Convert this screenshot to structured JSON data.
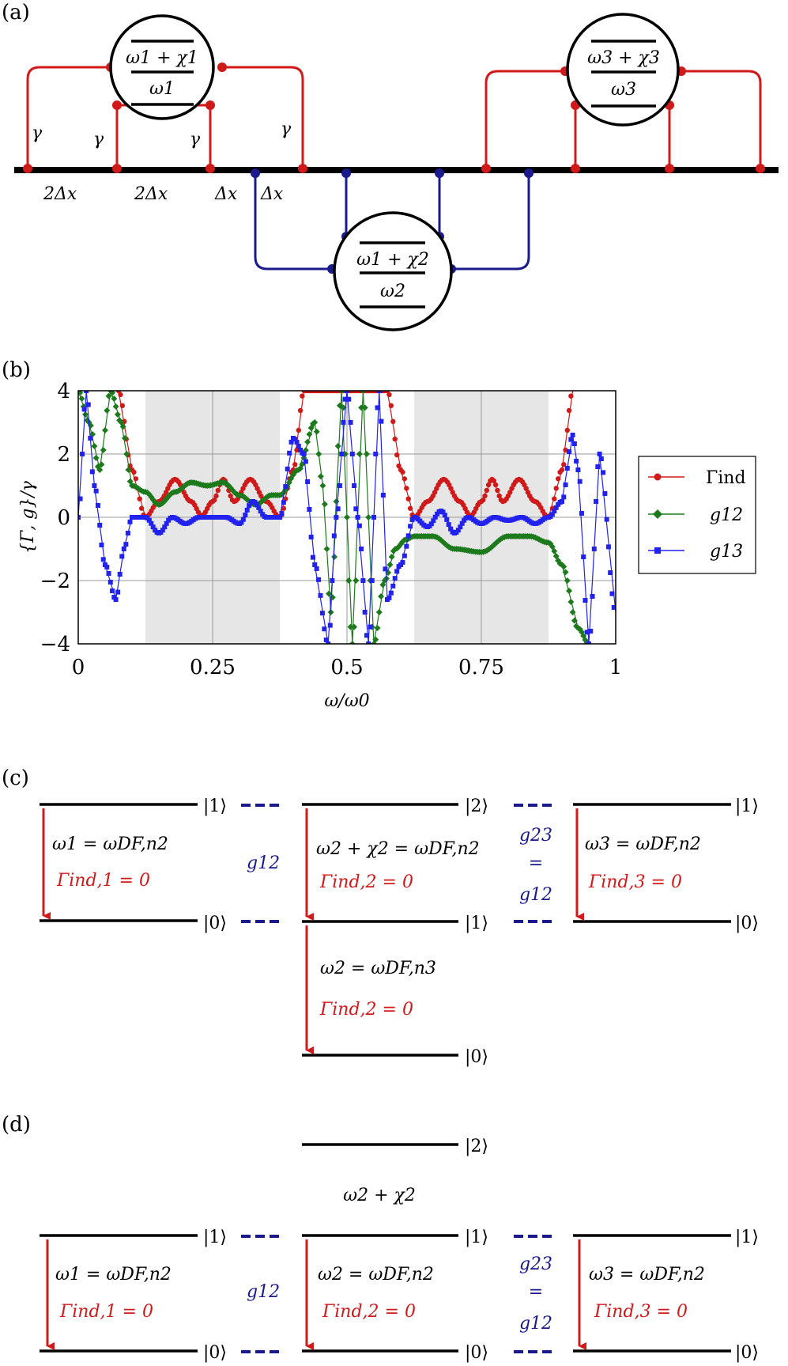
{
  "colors": {
    "red": "#d01a1a",
    "blue": "#1a1a8c",
    "green": "#1c7a1c",
    "plot_blue": "#2222ee",
    "shade": "#e6e6e6"
  },
  "panel_a": {
    "label": "(a)",
    "atom1": {
      "top": "ω1 + χ1",
      "bottom": "ω1"
    },
    "atom2": {
      "top": "ω1 + χ2",
      "bottom": "ω2"
    },
    "atom3": {
      "top": "ω3 + χ3",
      "bottom": "ω3"
    },
    "gamma": "γ",
    "spacings": [
      "2Δx",
      "2Δx",
      "Δx",
      "Δx"
    ]
  },
  "panel_b": {
    "label": "(b)"
  },
  "chart_data": {
    "type": "line",
    "title": "",
    "xlabel": "ω/ω0",
    "ylabel": "{Γ, g}/γ",
    "xlim": [
      0,
      1
    ],
    "ylim": [
      -4,
      4
    ],
    "x_ticks": [
      "0",
      "0.25",
      "0.5",
      "0.75",
      "1"
    ],
    "y_ticks": [
      "4",
      "2",
      "0",
      "−2",
      "−4"
    ],
    "grid": true,
    "shaded_regions": [
      [
        0.125,
        0.375
      ],
      [
        0.625,
        0.875
      ]
    ],
    "legend_position": "right",
    "series": [
      {
        "name": "Γind",
        "marker": "circle",
        "x": [
          0.075,
          0.1,
          0.125,
          0.15,
          0.18,
          0.21,
          0.23,
          0.25,
          0.27,
          0.29,
          0.32,
          0.35,
          0.375,
          0.4,
          0.42,
          0.575,
          0.6,
          0.625,
          0.65,
          0.68,
          0.71,
          0.73,
          0.75,
          0.77,
          0.79,
          0.82,
          0.85,
          0.875,
          0.9,
          0.92
        ],
        "values": [
          4.0,
          1.5,
          0.0,
          0.5,
          1.2,
          0.5,
          0.05,
          0.5,
          1.2,
          0.5,
          1.2,
          0.5,
          0.0,
          1.5,
          4.0,
          4.0,
          1.5,
          0.0,
          0.5,
          1.2,
          0.5,
          0.05,
          0.5,
          1.2,
          0.5,
          1.2,
          0.5,
          0.0,
          1.5,
          4.0
        ]
      },
      {
        "name": "g12",
        "marker": "diamond",
        "x": [
          0.0,
          0.02,
          0.04,
          0.06,
          0.08,
          0.1,
          0.125,
          0.15,
          0.18,
          0.21,
          0.24,
          0.27,
          0.3,
          0.33,
          0.36,
          0.375,
          0.41,
          0.44,
          0.455,
          0.47,
          0.49,
          0.51,
          0.53,
          0.55,
          0.57,
          0.59,
          0.61,
          0.625,
          0.66,
          0.7,
          0.75,
          0.8,
          0.84,
          0.875,
          0.9,
          0.93,
          0.95
        ],
        "values": [
          4.0,
          3.0,
          1.5,
          4.0,
          3.0,
          1.0,
          0.8,
          0.4,
          0.8,
          1.1,
          1.0,
          1.1,
          0.7,
          0.4,
          0.7,
          0.7,
          1.5,
          3.0,
          1.0,
          -3.0,
          4.0,
          -4.0,
          4.0,
          -4.0,
          -2.0,
          -1.0,
          -0.7,
          -0.6,
          -0.6,
          -1.0,
          -1.1,
          -0.6,
          -0.6,
          -0.8,
          -1.5,
          -3.5,
          -4.0
        ]
      },
      {
        "name": "g13",
        "marker": "square",
        "x": [
          0.0,
          0.015,
          0.03,
          0.05,
          0.07,
          0.085,
          0.1,
          0.125,
          0.15,
          0.175,
          0.2,
          0.225,
          0.25,
          0.275,
          0.3,
          0.325,
          0.35,
          0.375,
          0.4,
          0.42,
          0.44,
          0.465,
          0.48,
          0.5,
          0.52,
          0.54,
          0.56,
          0.575,
          0.6,
          0.625,
          0.65,
          0.675,
          0.7,
          0.725,
          0.75,
          0.775,
          0.8,
          0.825,
          0.85,
          0.875,
          0.9,
          0.92,
          0.93,
          0.95,
          0.97,
          1.0
        ],
        "values": [
          0.0,
          4.0,
          1.0,
          -1.5,
          -2.6,
          -1.0,
          0.0,
          0.0,
          -0.5,
          0.0,
          -0.2,
          0.0,
          0.0,
          0.0,
          -0.2,
          0.5,
          0.0,
          0.0,
          2.5,
          2.0,
          -1.5,
          -4.0,
          0.0,
          4.0,
          0.0,
          -4.0,
          4.0,
          -2.6,
          -1.5,
          0.0,
          -0.3,
          0.2,
          -0.5,
          0.0,
          -0.2,
          0.0,
          -0.1,
          0.0,
          -0.2,
          0.0,
          0.5,
          2.6,
          1.5,
          -4.0,
          2.0,
          -3.0
        ]
      }
    ]
  },
  "panel_c": {
    "label": "(c)",
    "kets": {
      "k0": "|0⟩",
      "k1": "|1⟩",
      "k2": "|2⟩"
    },
    "col1": {
      "freq": "ω1 = ωDF,n2",
      "gamma": "Γind,1 = 0"
    },
    "col2": {
      "freq": "ω2 + χ2 = ωDF,n2",
      "gamma": "Γind,2 = 0",
      "freq_low": "ω2 = ωDF,n3",
      "gamma_low": "Γind,2 = 0"
    },
    "col3": {
      "freq": "ω3 = ωDF,n2",
      "gamma": "Γind,3 = 0"
    },
    "g12": "g12",
    "g23": "g23",
    "equals": "=",
    "g12b": "g12"
  },
  "panel_d": {
    "label": "(d)",
    "top_label": "ω2 + χ2",
    "col1": {
      "freq": "ω1 = ωDF,n2",
      "gamma": "Γind,1 = 0"
    },
    "col2": {
      "freq": "ω2 = ωDF,n2",
      "gamma": "Γind,2 = 0"
    },
    "col3": {
      "freq": "ω3 = ωDF,n2",
      "gamma": "Γind,3 = 0"
    },
    "g12": "g12",
    "g23": "g23",
    "equals": "=",
    "g12b": "g12"
  }
}
